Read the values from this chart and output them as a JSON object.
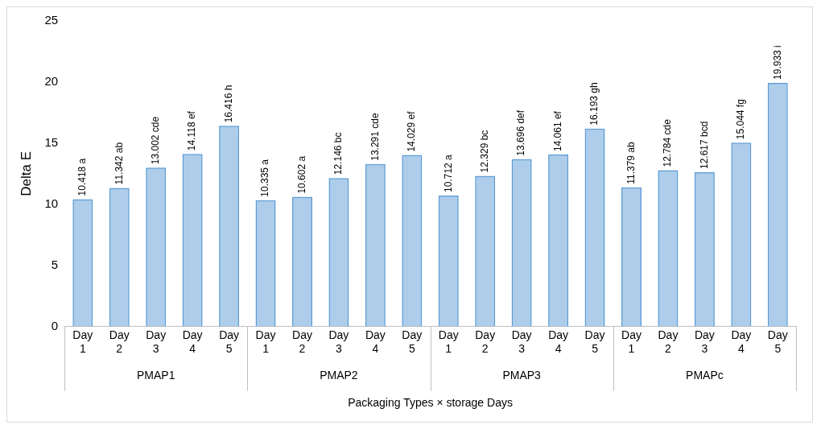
{
  "chart_data": {
    "type": "bar",
    "xlabel": "Packaging Types × storage Days",
    "ylabel": "Delta E",
    "categories": [
      "Day 1",
      "Day 2",
      "Day 3",
      "Day 4",
      "Day 5",
      "Day 1",
      "Day 2",
      "Day 3",
      "Day 4",
      "Day 5",
      "Day 1",
      "Day 2",
      "Day 3",
      "Day 4",
      "Day 5",
      "Day 1",
      "Day 2",
      "Day 3",
      "Day 4",
      "Day 5"
    ],
    "values": [
      10.418,
      11.342,
      13.002,
      14.118,
      16.416,
      10.335,
      10.602,
      12.146,
      13.291,
      14.029,
      10.712,
      12.329,
      13.696,
      14.061,
      16.193,
      11.379,
      12.784,
      12.617,
      15.044,
      19.933
    ],
    "value_labels": [
      "10.418 a",
      "11.342 ab",
      "13.002 cde",
      "14.118 ef",
      "16.416 h",
      "10.335 a",
      "10.602 a",
      "12.146 bc",
      "13.291 cde",
      "14.029 ef",
      "10.712 a",
      "12.329 bc",
      "13.696 def",
      "14.061 ef",
      "16.193 gh",
      "11.379 ab",
      "12.784 cde",
      "12.617 bcd",
      "15.044 fg",
      "19.933 i"
    ],
    "color": "#5b9bd5",
    "annotations": [
      "PMAP1",
      "PMAP2",
      "PMAP3",
      "PMAPc"
    ],
    "ylim": [
      0,
      25
    ],
    "yticks": [
      0,
      5,
      10,
      15,
      20,
      25
    ],
    "grid": false,
    "legend": false
  }
}
